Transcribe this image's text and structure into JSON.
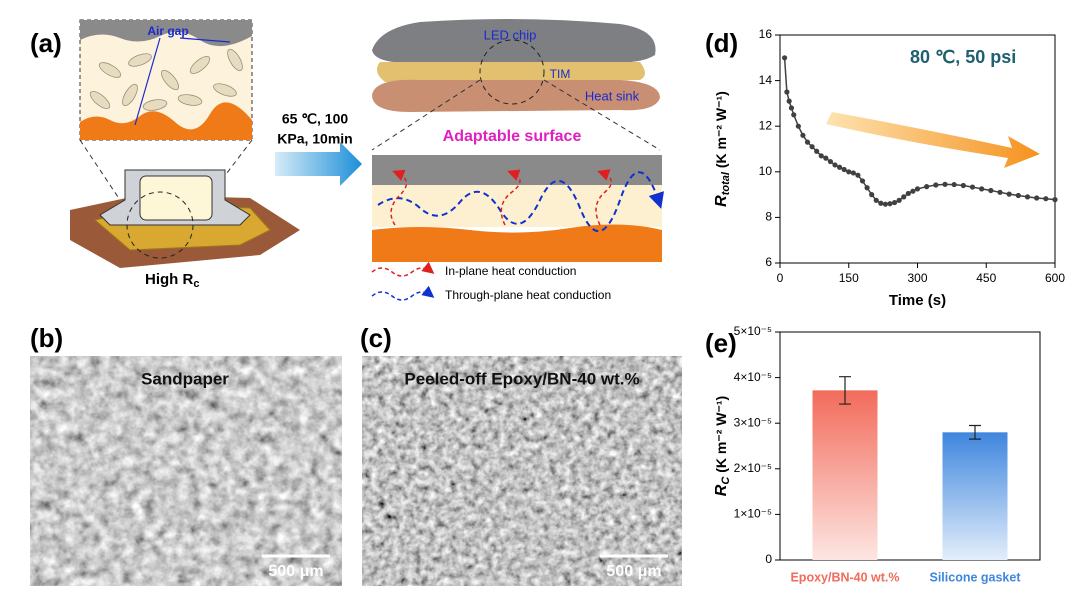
{
  "panels": {
    "a": {
      "label": "(a)",
      "air_gap": "Air gap",
      "high_rc": "High R",
      "high_rc_sub": "c",
      "condition_line1": "65 ℃, 100",
      "condition_line2": "KPa, 10min",
      "led_chip": "LED chip",
      "tim": "TIM",
      "heat_sink": "Heat sink",
      "adaptable": "Adaptable surface",
      "in_plane": "In-plane heat conduction",
      "through_plane": "Through-plane heat conduction"
    },
    "b": {
      "label": "(b)",
      "title": "Sandpaper",
      "scale": "500 μm"
    },
    "c": {
      "label": "(c)",
      "title": "Peeled-off Epoxy/BN-40 wt.%",
      "scale": "500 μm"
    }
  },
  "chart_data": [
    {
      "type": "line",
      "panel_label": "(d)",
      "annotation": "80 ℃, 50 psi",
      "x_label": "Time (s)",
      "y_label": {
        "main": "R",
        "sub": "total",
        "unit": " (K m⁻² W⁻¹)"
      },
      "color": "#404040",
      "x": [
        10,
        15,
        20,
        25,
        30,
        40,
        50,
        60,
        70,
        80,
        90,
        100,
        110,
        120,
        130,
        140,
        150,
        160,
        170,
        180,
        190,
        200,
        210,
        220,
        230,
        240,
        250,
        260,
        270,
        280,
        290,
        300,
        320,
        340,
        360,
        380,
        400,
        420,
        440,
        460,
        480,
        500,
        520,
        540,
        560,
        580,
        600
      ],
      "values": [
        15,
        13.5,
        13.1,
        12.8,
        12.5,
        12.0,
        11.6,
        11.3,
        11.1,
        10.9,
        10.7,
        10.6,
        10.45,
        10.3,
        10.2,
        10.1,
        10.0,
        9.95,
        9.85,
        9.6,
        9.3,
        9.0,
        8.75,
        8.62,
        8.58,
        8.6,
        8.65,
        8.75,
        8.9,
        9.05,
        9.15,
        9.25,
        9.35,
        9.42,
        9.45,
        9.44,
        9.4,
        9.33,
        9.25,
        9.18,
        9.1,
        9.02,
        8.96,
        8.9,
        8.85,
        8.82,
        8.78
      ],
      "xlim": [
        0,
        600
      ],
      "xticks": [
        0,
        150,
        300,
        450,
        600
      ],
      "ylim": [
        6,
        16
      ],
      "yticks": [
        6,
        8,
        10,
        12,
        14,
        16
      ]
    },
    {
      "type": "bar",
      "panel_label": "(e)",
      "y_label": {
        "main": "R",
        "sub": "C",
        "unit": " (K m⁻² W⁻¹)"
      },
      "categories": [
        "Epoxy/BN-40 wt.%",
        "Silicone gasket"
      ],
      "colors": [
        "#f26b5b",
        "#3f86de"
      ],
      "values": [
        3.72e-05,
        2.8e-05
      ],
      "errors": [
        3e-06,
        1.5e-06
      ],
      "ylim": [
        0,
        5e-05
      ],
      "yticks": [
        0,
        {
          "value": 1e-05,
          "label": "1×10⁻⁵"
        },
        {
          "value": 2e-05,
          "label": "2×10⁻⁵"
        },
        {
          "value": 3e-05,
          "label": "3×10⁻⁵"
        },
        {
          "value": 4e-05,
          "label": "4×10⁻⁵"
        },
        {
          "value": 5e-05,
          "label": "5×10⁻⁵"
        }
      ]
    }
  ]
}
